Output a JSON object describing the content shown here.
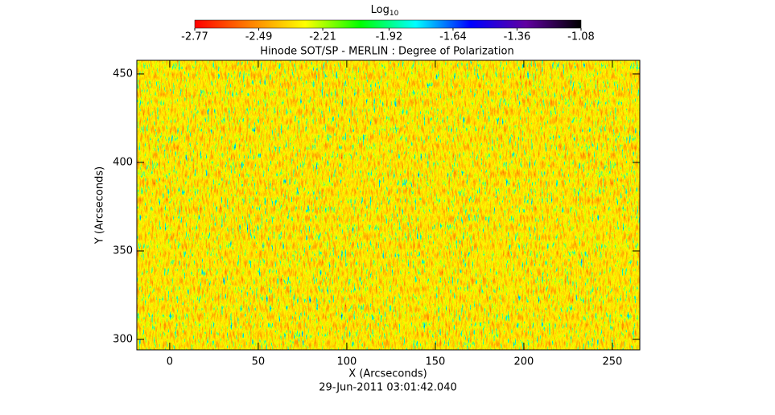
{
  "chart_data": {
    "type": "heatmap",
    "title": "Hinode SOT/SP - MERLIN : Degree of Polarization",
    "xlabel": "X (Arcseconds)",
    "ylabel": "Y (Arcseconds)",
    "footer": "29-Jun-2011 03:01:42.040",
    "xlim": [
      -18.6,
      265.5
    ],
    "xticks": [
      0,
      50,
      100,
      150,
      200,
      250
    ],
    "ylim": [
      294.1,
      457.7
    ],
    "yticks": [
      300,
      350,
      400,
      450
    ],
    "colorbar": {
      "label": "Log",
      "label_subscript": "10",
      "clim": [
        -2.77,
        -1.08
      ],
      "ticks": [
        -2.77,
        -2.49,
        -2.21,
        -1.92,
        -1.64,
        -1.36,
        -1.08
      ],
      "colormap": [
        "#ff0000",
        "#ff8000",
        "#ffff00",
        "#00ff00",
        "#00ffff",
        "#0000ff",
        "#6000a0",
        "#000000"
      ]
    }
  }
}
